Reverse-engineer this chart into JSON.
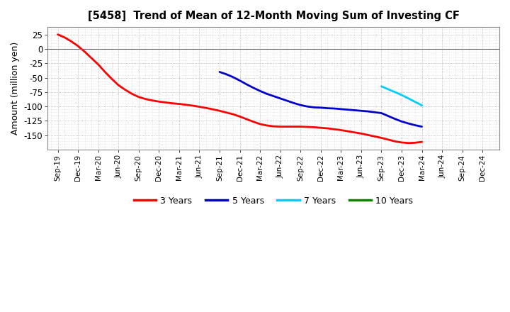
{
  "title": "[5458]  Trend of Mean of 12-Month Moving Sum of Investing CF",
  "ylabel": "Amount (million yen)",
  "background_color": "#ffffff",
  "ylim": [
    -175,
    38
  ],
  "yticks": [
    25,
    0,
    -25,
    -50,
    -75,
    -100,
    -125,
    -150
  ],
  "series": {
    "3yr": {
      "color": "#ff0000",
      "label": "3 Years",
      "x": [
        0,
        1,
        2,
        3,
        4,
        5,
        6,
        7,
        8,
        9,
        10,
        11,
        12,
        13,
        14,
        15,
        16,
        17,
        18,
        19,
        20,
        21,
        22,
        23,
        24,
        25,
        26,
        27,
        28,
        29,
        30,
        31,
        32,
        33,
        34,
        35,
        36,
        37,
        38,
        39,
        40,
        41,
        42,
        43,
        44,
        45,
        46,
        47,
        48,
        49,
        50,
        51,
        52,
        53,
        54
      ],
      "values": [
        25.0,
        20.0,
        13.0,
        5.0,
        -5.0,
        -16.0,
        -27.0,
        -40.0,
        -52.0,
        -63.0,
        -71.0,
        -78.0,
        -83.5,
        -87.0,
        -89.5,
        -91.5,
        -93.0,
        -94.5,
        -95.5,
        -97.0,
        -98.5,
        -100.5,
        -102.5,
        -105.0,
        -107.5,
        -110.5,
        -113.5,
        -117.5,
        -122.0,
        -126.5,
        -130.5,
        -133.0,
        -134.5,
        -135.0,
        -135.0,
        -135.0,
        -135.0,
        -135.5,
        -136.0,
        -137.0,
        -138.0,
        -139.5,
        -141.0,
        -143.0,
        -145.0,
        -147.0,
        -149.5,
        -152.0,
        -154.5,
        -157.5,
        -160.5,
        -162.5,
        -163.5,
        -163.0,
        -161.5
      ]
    },
    "5yr": {
      "color": "#0000cc",
      "label": "5 Years",
      "x": [
        24,
        25,
        26,
        27,
        28,
        29,
        30,
        31,
        32,
        33,
        34,
        35,
        36,
        37,
        38,
        39,
        40,
        41,
        42,
        43,
        44,
        45,
        46,
        47,
        48,
        49,
        50,
        51,
        52,
        53,
        54
      ],
      "values": [
        -40.0,
        -44.0,
        -49.0,
        -55.0,
        -61.5,
        -67.5,
        -73.0,
        -78.0,
        -82.0,
        -86.0,
        -90.0,
        -94.0,
        -97.5,
        -100.0,
        -101.5,
        -102.0,
        -103.0,
        -103.5,
        -104.5,
        -105.5,
        -106.5,
        -107.5,
        -108.5,
        -110.0,
        -111.5,
        -116.5,
        -121.5,
        -126.0,
        -129.5,
        -132.5,
        -135.0
      ]
    },
    "7yr": {
      "color": "#00ccff",
      "label": "7 Years",
      "x": [
        48,
        49,
        50,
        51,
        52,
        53,
        54
      ],
      "values": [
        -65.0,
        -70.0,
        -75.0,
        -80.0,
        -86.0,
        -92.0,
        -98.0
      ]
    },
    "10yr": {
      "color": "#008800",
      "label": "10 Years",
      "x": [],
      "values": []
    }
  },
  "xtick_positions": [
    0,
    3,
    6,
    9,
    12,
    15,
    18,
    21,
    24,
    27,
    30,
    33,
    36,
    39,
    42,
    45,
    48,
    51,
    54,
    57,
    60,
    63
  ],
  "xtick_labels": [
    "Sep-19",
    "Dec-19",
    "Mar-20",
    "Jun-20",
    "Sep-20",
    "Dec-20",
    "Mar-21",
    "Jun-21",
    "Sep-21",
    "Dec-21",
    "Mar-22",
    "Jun-22",
    "Sep-22",
    "Dec-22",
    "Mar-23",
    "Jun-23",
    "Sep-23",
    "Dec-23",
    "Mar-24",
    "Jun-24",
    "Sep-24",
    "Dec-24"
  ],
  "legend_order": [
    "3 Years",
    "5 Years",
    "7 Years",
    "10 Years"
  ],
  "legend_colors": [
    "#ff0000",
    "#0000cc",
    "#00ccff",
    "#008800"
  ]
}
